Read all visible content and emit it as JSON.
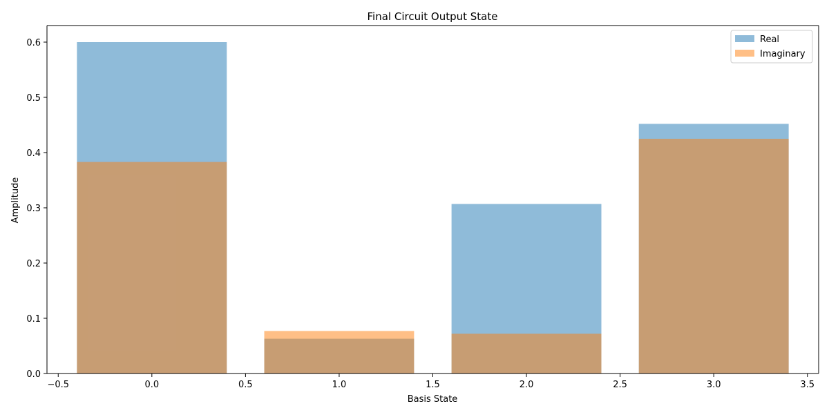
{
  "chart_data": {
    "type": "bar",
    "title": "Final Circuit Output State",
    "xlabel": "Basis State",
    "ylabel": "Amplitude",
    "x": [
      0,
      1,
      2,
      3
    ],
    "bar_width": 0.8,
    "xlim": [
      -0.56,
      3.56
    ],
    "ylim": [
      0,
      0.63
    ],
    "xticks": [
      -0.5,
      0.0,
      0.5,
      1.0,
      1.5,
      2.0,
      2.5,
      3.0,
      3.5
    ],
    "xtick_labels": [
      "−0.5",
      "0.0",
      "0.5",
      "1.0",
      "1.5",
      "2.0",
      "2.5",
      "3.0",
      "3.5"
    ],
    "yticks": [
      0.0,
      0.1,
      0.2,
      0.3,
      0.4,
      0.5,
      0.6
    ],
    "ytick_labels": [
      "0.0",
      "0.1",
      "0.2",
      "0.3",
      "0.4",
      "0.5",
      "0.6"
    ],
    "grid": false,
    "legend_position": "top-right",
    "series": [
      {
        "name": "Real",
        "values": [
          0.6,
          0.063,
          0.307,
          0.452
        ],
        "color": "#1f77b4",
        "alpha": 0.5
      },
      {
        "name": "Imaginary",
        "values": [
          0.383,
          0.077,
          0.072,
          0.425
        ],
        "color": "#ff7f0e",
        "alpha": 0.5
      }
    ]
  }
}
